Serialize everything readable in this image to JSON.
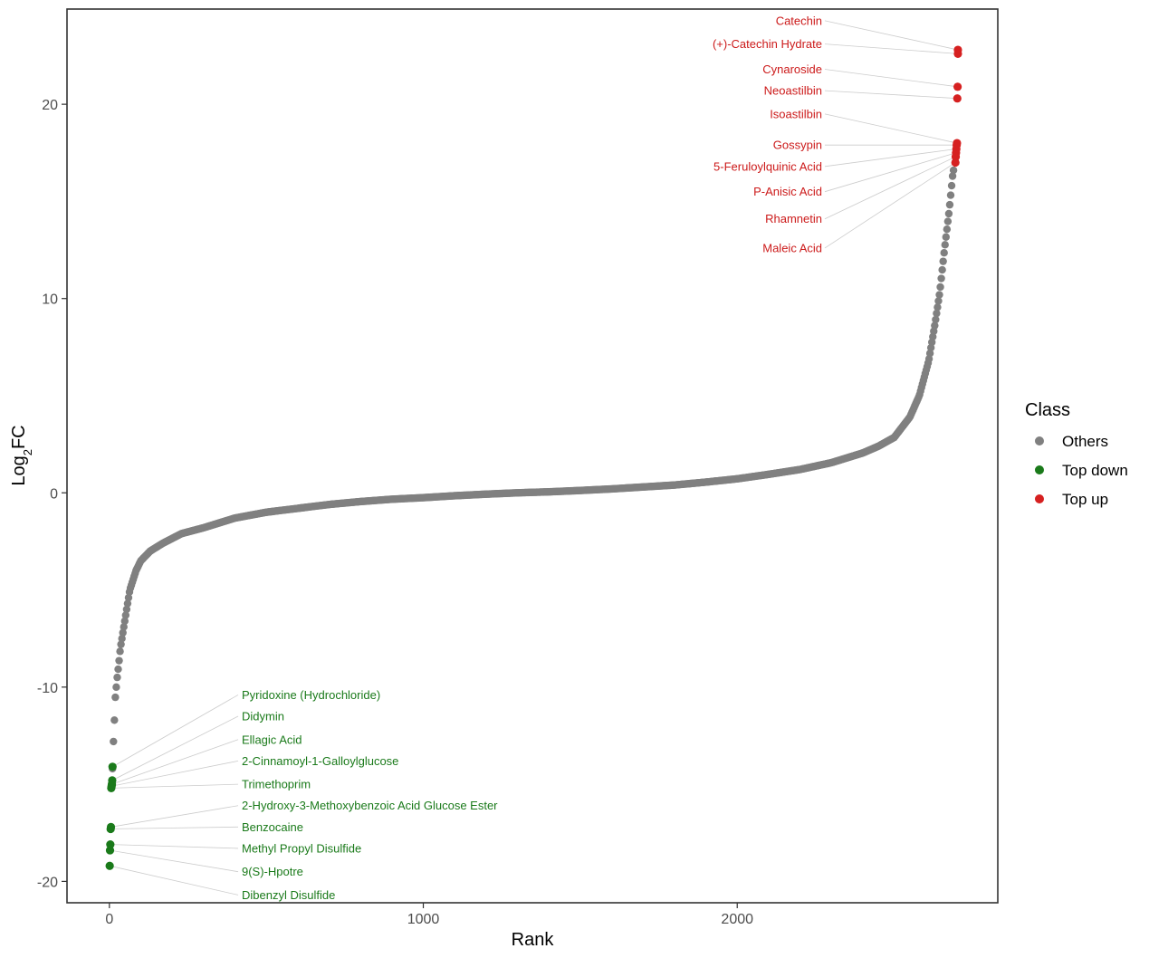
{
  "chart_data": {
    "type": "scatter",
    "title": "",
    "xlabel": "Rank",
    "ylabel_main": "Log",
    "ylabel_sub": "2",
    "ylabel_suffix": "FC",
    "xlim": [
      -135,
      2830
    ],
    "ylim": [
      -21.1,
      24.9
    ],
    "x_ticks": [
      0,
      1000,
      2000
    ],
    "x_tick_labels": [
      "0",
      "1000",
      "2000"
    ],
    "y_ticks": [
      -20,
      -10,
      0,
      10,
      20
    ],
    "y_tick_labels": [
      "-20",
      "-10",
      "0",
      "10",
      "20"
    ],
    "grid": false,
    "legend": {
      "title": "Class",
      "position": "right",
      "entries": [
        {
          "label": "Others",
          "color": "#808080"
        },
        {
          "label": "Top down",
          "color": "#1a7a1a"
        },
        {
          "label": "Top up",
          "color": "#d62020"
        }
      ]
    },
    "colors": {
      "Others": "#808080",
      "Top down": "#1a7a1a",
      "Top up": "#d62020"
    },
    "total_points": 2704,
    "others_curve": [
      [
        10,
        -14.2
      ],
      [
        12,
        -13.3
      ],
      [
        14,
        -12.3
      ],
      [
        16,
        -11.7
      ],
      [
        18,
        -10.7
      ],
      [
        22,
        -10.0
      ],
      [
        25,
        -9.5
      ],
      [
        30,
        -8.8
      ],
      [
        35,
        -8.0
      ],
      [
        45,
        -7.0
      ],
      [
        55,
        -6.0
      ],
      [
        65,
        -5.0
      ],
      [
        75,
        -4.5
      ],
      [
        85,
        -4.0
      ],
      [
        100,
        -3.5
      ],
      [
        130,
        -3.0
      ],
      [
        170,
        -2.6
      ],
      [
        230,
        -2.1
      ],
      [
        300,
        -1.8
      ],
      [
        400,
        -1.3
      ],
      [
        500,
        -1.0
      ],
      [
        600,
        -0.8
      ],
      [
        700,
        -0.6
      ],
      [
        800,
        -0.45
      ],
      [
        900,
        -0.33
      ],
      [
        1000,
        -0.25
      ],
      [
        1100,
        -0.15
      ],
      [
        1200,
        -0.07
      ],
      [
        1300,
        0.0
      ],
      [
        1400,
        0.05
      ],
      [
        1500,
        0.12
      ],
      [
        1600,
        0.2
      ],
      [
        1700,
        0.3
      ],
      [
        1800,
        0.4
      ],
      [
        1900,
        0.55
      ],
      [
        2000,
        0.72
      ],
      [
        2100,
        0.95
      ],
      [
        2200,
        1.2
      ],
      [
        2300,
        1.55
      ],
      [
        2400,
        2.05
      ],
      [
        2450,
        2.4
      ],
      [
        2500,
        2.85
      ],
      [
        2550,
        3.9
      ],
      [
        2580,
        5.0
      ],
      [
        2610,
        6.8
      ],
      [
        2630,
        8.7
      ],
      [
        2645,
        10.3
      ],
      [
        2660,
        12.5
      ],
      [
        2675,
        14.5
      ],
      [
        2686,
        16.3
      ],
      [
        2690,
        16.7
      ]
    ],
    "top_up": [
      {
        "label": "Catechin",
        "x": 2703,
        "y": 22.8,
        "label_y": 24.3
      },
      {
        "label": "(+)-Catechin Hydrate",
        "x": 2703,
        "y": 22.6,
        "label_y": 23.1
      },
      {
        "label": "Cynaroside",
        "x": 2702,
        "y": 20.9,
        "label_y": 21.8
      },
      {
        "label": "Neoastilbin",
        "x": 2701,
        "y": 20.3,
        "label_y": 20.7
      },
      {
        "label": "Isoastilbin",
        "x": 2700,
        "y": 18.0,
        "label_y": 19.5
      },
      {
        "label": "Gossypin",
        "x": 2699,
        "y": 17.9,
        "label_y": 17.9
      },
      {
        "label": "5-Feruloylquinic Acid",
        "x": 2698,
        "y": 17.7,
        "label_y": 16.8
      },
      {
        "label": "P-Anisic Acid",
        "x": 2697,
        "y": 17.5,
        "label_y": 15.5
      },
      {
        "label": "Rhamnetin",
        "x": 2696,
        "y": 17.3,
        "label_y": 14.1
      },
      {
        "label": "Maleic Acid",
        "x": 2695,
        "y": 17.0,
        "label_y": 12.6
      }
    ],
    "top_down": [
      {
        "label": "Pyridoxine (Hydrochloride)",
        "x": 10,
        "y": -14.1,
        "label_y": -10.4
      },
      {
        "label": "Didymin",
        "x": 9,
        "y": -14.8,
        "label_y": -11.5
      },
      {
        "label": "Ellagic Acid",
        "x": 8,
        "y": -15.0,
        "label_y": -12.7
      },
      {
        "label": "2-Cinnamoyl-1-Galloylglucose",
        "x": 7,
        "y": -15.1,
        "label_y": -13.8
      },
      {
        "label": "Trimethoprim",
        "x": 6,
        "y": -15.2,
        "label_y": -15.0
      },
      {
        "label": "2-Hydroxy-3-Methoxybenzoic Acid Glucose Ester",
        "x": 5,
        "y": -17.2,
        "label_y": -16.1
      },
      {
        "label": "Benzocaine",
        "x": 4,
        "y": -17.3,
        "label_y": -17.2
      },
      {
        "label": "Methyl Propyl Disulfide",
        "x": 3,
        "y": -18.1,
        "label_y": -18.3
      },
      {
        "label": "9(S)-Hpotre",
        "x": 2,
        "y": -18.4,
        "label_y": -19.5
      },
      {
        "label": "Dibenzyl Disulfide",
        "x": 1,
        "y": -19.2,
        "label_y": -20.7
      }
    ]
  }
}
